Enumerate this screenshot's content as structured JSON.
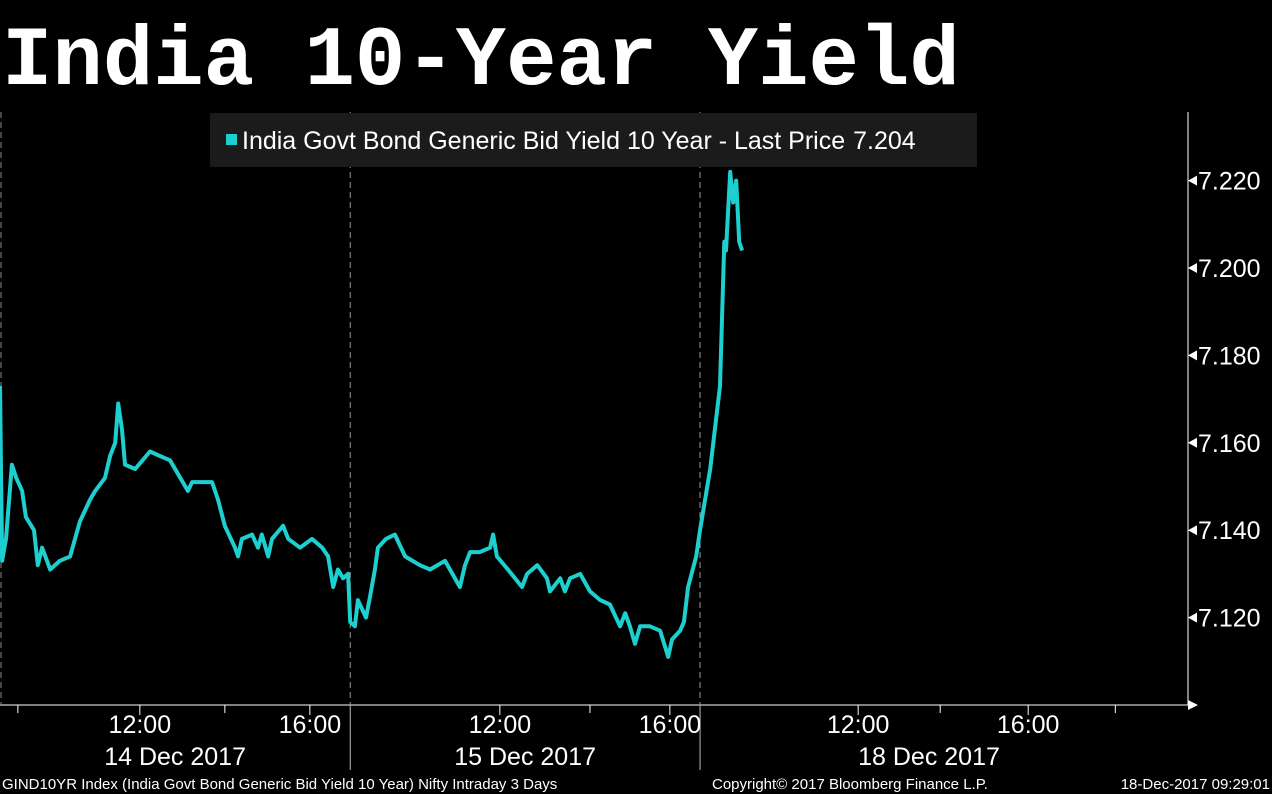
{
  "chart_data": {
    "type": "line",
    "title": "India 10-Year Yield",
    "series": [
      {
        "name": "India Govt Bond Generic Bid Yield 10 Year - Last Price",
        "color": "#1ecfcf",
        "x": [
          0,
          0.05,
          0.14,
          0.28,
          0.38,
          0.52,
          0.61,
          0.8,
          0.89,
          0.99,
          1.18,
          1.41,
          1.65,
          1.88,
          2.12,
          2.24,
          2.47,
          2.59,
          2.71,
          2.78,
          2.87,
          2.94,
          3.18,
          3.53,
          3.76,
          4.0,
          4.24,
          4.42,
          4.52,
          4.75,
          4.99,
          5.13,
          5.29,
          5.53,
          5.6,
          5.69,
          5.93,
          6.07,
          6.16,
          6.31,
          6.4,
          6.66,
          6.78,
          7.06,
          7.34,
          7.58,
          7.72,
          7.84,
          7.95,
          8.07,
          8.19,
          8.24,
          8.35,
          8.42,
          8.61,
          8.71,
          8.82,
          8.89,
          9.08,
          9.29,
          9.53,
          9.88,
          10.12,
          10.47,
          10.82,
          10.94,
          11.06,
          11.29,
          11.53,
          11.6,
          11.69,
          11.95,
          12.28,
          12.4,
          12.64,
          12.87,
          12.94,
          13.18,
          13.29,
          13.41,
          13.65,
          13.88,
          14.12,
          14.35,
          14.59,
          14.71,
          14.82,
          14.94,
          15.06,
          15.29,
          15.53,
          15.72,
          15.81,
          16.0,
          16.09,
          16.19,
          16.38,
          16.47,
          16.71,
          16.94,
          17.04,
          17.08,
          17.18,
          17.25,
          17.32,
          17.39,
          17.46
        ],
        "values": [
          7.173,
          7.133,
          7.138,
          7.155,
          7.152,
          7.149,
          7.143,
          7.14,
          7.132,
          7.136,
          7.131,
          7.133,
          7.134,
          7.142,
          7.147,
          7.149,
          7.152,
          7.157,
          7.16,
          7.169,
          7.163,
          7.155,
          7.154,
          7.158,
          7.157,
          7.156,
          7.152,
          7.149,
          7.151,
          7.151,
          7.151,
          7.147,
          7.141,
          7.136,
          7.134,
          7.138,
          7.139,
          7.136,
          7.139,
          7.134,
          7.138,
          7.141,
          7.138,
          7.136,
          7.138,
          7.136,
          7.134,
          7.127,
          7.131,
          7.129,
          7.13,
          7.119,
          7.118,
          7.124,
          7.12,
          7.125,
          7.131,
          7.136,
          7.138,
          7.139,
          7.134,
          7.132,
          7.131,
          7.133,
          7.127,
          7.132,
          7.135,
          7.135,
          7.136,
          7.139,
          7.134,
          7.131,
          7.127,
          7.13,
          7.132,
          7.129,
          7.126,
          7.129,
          7.126,
          7.129,
          7.13,
          7.126,
          7.124,
          7.123,
          7.118,
          7.121,
          7.118,
          7.114,
          7.118,
          7.118,
          7.117,
          7.111,
          7.115,
          7.117,
          7.119,
          7.127,
          7.134,
          7.14,
          7.154,
          7.173,
          7.206,
          7.204,
          7.222,
          7.215,
          7.22,
          7.206,
          7.204
        ]
      }
    ],
    "last_price": 7.204,
    "xlim": [
      0,
      27.95
    ],
    "xticks": [
      {
        "value": 3.29,
        "label": "12:00"
      },
      {
        "value": 7.29,
        "label": "16:00"
      },
      {
        "value": 11.76,
        "label": "12:00"
      },
      {
        "value": 15.76,
        "label": "16:00"
      },
      {
        "value": 20.19,
        "label": "12:00"
      },
      {
        "value": 24.19,
        "label": "16:00"
      }
    ],
    "xminorticks": [
      0.42,
      5.29,
      13.88,
      22.12,
      26.24
    ],
    "day_breaks": [
      8.24,
      16.47
    ],
    "days": [
      "14 Dec 2017",
      "15 Dec 2017",
      "18 Dec 2017"
    ],
    "ylim": [
      7.1,
      7.2357
    ],
    "yticks": [
      {
        "value": 7.12,
        "label": "7.120"
      },
      {
        "value": 7.14,
        "label": "7.140"
      },
      {
        "value": 7.16,
        "label": "7.160"
      },
      {
        "value": 7.18,
        "label": "7.180"
      },
      {
        "value": 7.2,
        "label": "7.200"
      },
      {
        "value": 7.22,
        "label": "7.220"
      }
    ],
    "footer": {
      "left": "GIND10YR Index (India Govt Bond Generic Bid Yield 10 Year) Nifty Intraday 3 Days",
      "center": "Copyright© 2017 Bloomberg Finance L.P.",
      "right": "18-Dec-2017 09:29:01"
    }
  }
}
